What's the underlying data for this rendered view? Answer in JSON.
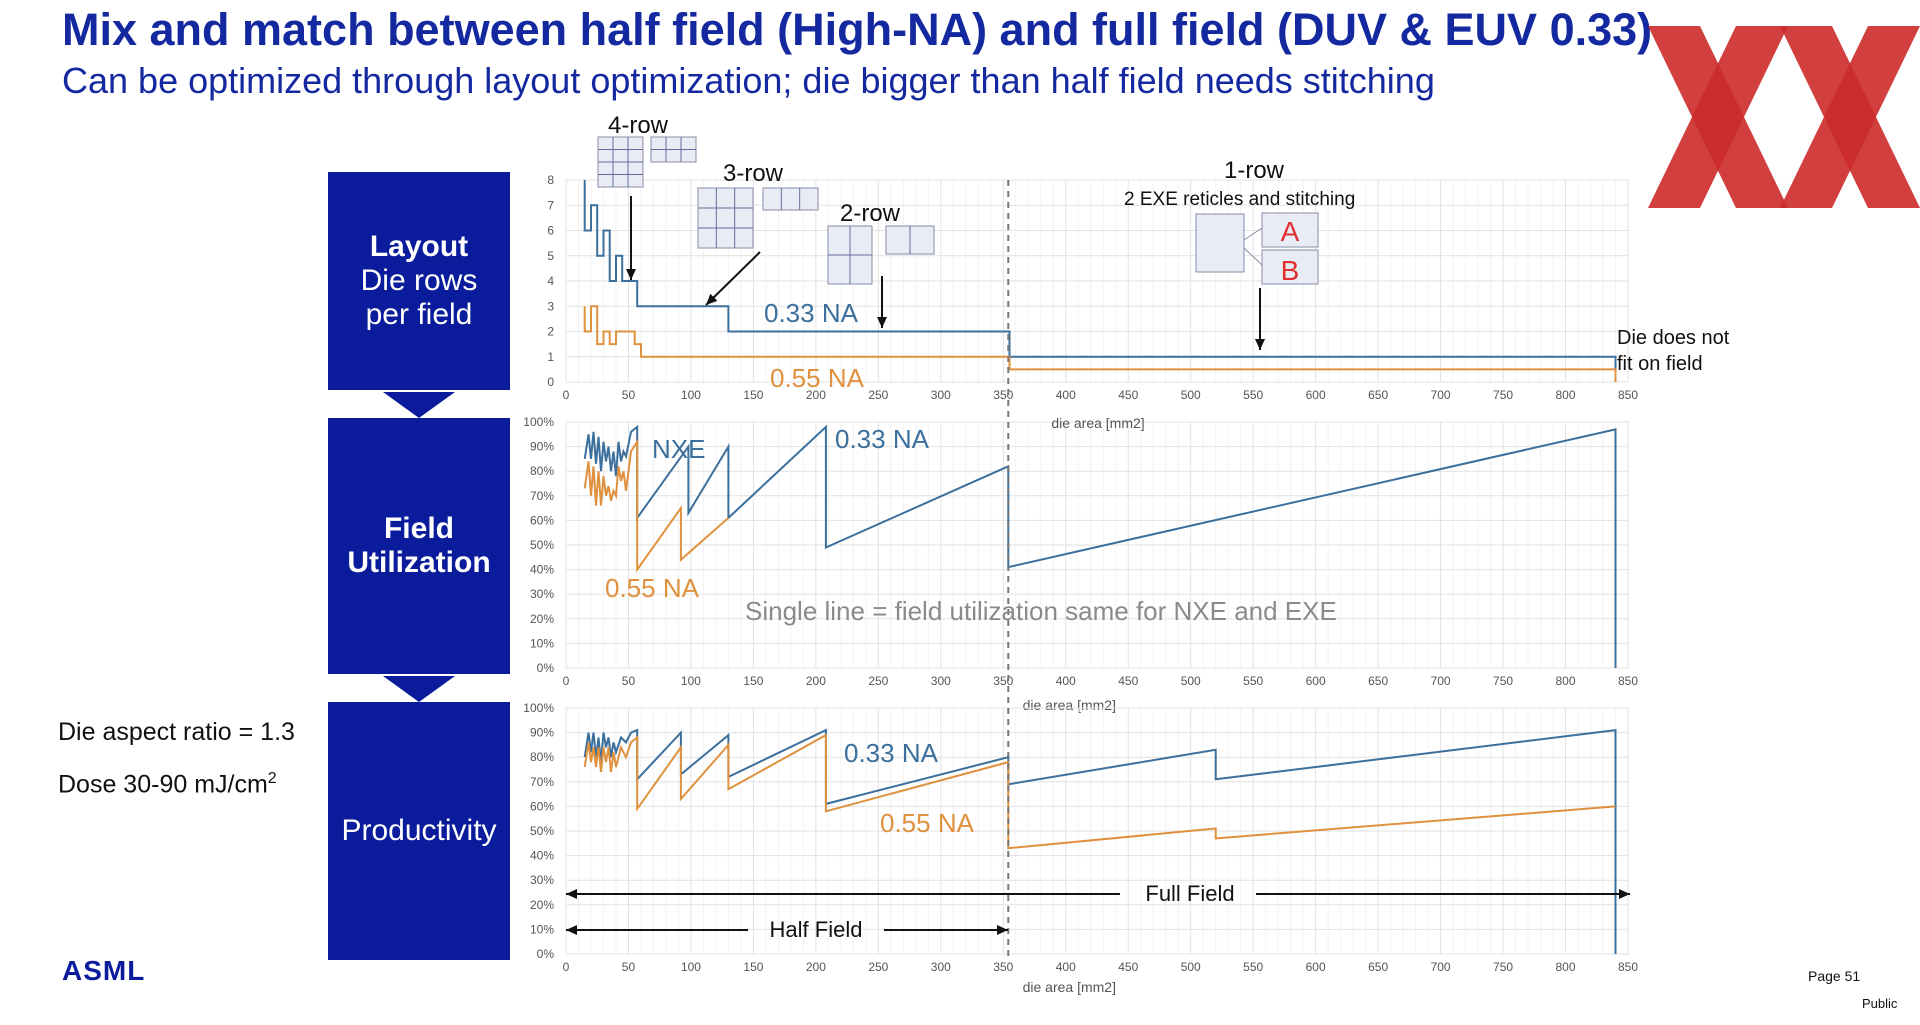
{
  "header": {
    "title": "Mix and match between half field (High-NA) and full field (DUV & EUV 0.33)",
    "subtitle": "Can be optimized through layout optimization; die bigger than half field needs stitching"
  },
  "sidebar": {
    "layout": {
      "line1": "Layout",
      "line2": "Die rows",
      "line3": "per field"
    },
    "utilization": {
      "line1": "Field",
      "line2": "Utilization"
    },
    "productivity": {
      "line1": "Productivity"
    }
  },
  "notes": {
    "aspect": "Die aspect ratio = 1.3",
    "dose": "Dose 30-90 mJ/cm",
    "dose_sup": "2"
  },
  "footer": {
    "logo": "ASML",
    "page": "Page 51",
    "classification": "Public"
  },
  "colors": {
    "blue_series": "#3b6f9c",
    "orange_series": "#e0913e",
    "brand": "#0a1c9b",
    "watermark": "#cc2a2a"
  },
  "annotations": {
    "row4": "4-row",
    "row3": "3-row",
    "row2": "2-row",
    "row1": "1-row",
    "stitch": "2 EXE reticles and stitching",
    "A": "A",
    "B": "B",
    "na033_top": "0.33 NA",
    "na055_top": "0.55 NA",
    "nofit1": "Die does not",
    "nofit2": "fit on field",
    "nxe": "NXE",
    "na033_mid": "0.33 NA",
    "na055_mid": "0.55 NA",
    "single_line": "Single line = field utilization same for NXE and EXE",
    "na033_bot": "0.33 NA",
    "na055_bot": "0.55 NA",
    "full_field": "Full Field",
    "half_field": "Half Field"
  },
  "chart_data": [
    {
      "type": "line",
      "name": "layout",
      "xlabel": "die area [mm2]",
      "ylabel": "",
      "xlim": [
        0,
        850
      ],
      "ylim": [
        0,
        8
      ],
      "x_ticks": [
        "0",
        "50",
        "100",
        "150",
        "200",
        "250",
        "300",
        "350",
        "400",
        "450",
        "500",
        "550",
        "600",
        "650",
        "700",
        "750",
        "800",
        "850"
      ],
      "y_ticks": [
        "0",
        "1",
        "2",
        "3",
        "4",
        "5",
        "6",
        "7",
        "8"
      ],
      "series": [
        {
          "name": "0.33 NA",
          "color": "blue",
          "x": [
            15,
            15,
            20,
            20,
            25,
            25,
            30,
            30,
            35,
            35,
            40,
            40,
            45,
            45,
            57,
            57,
            130,
            130,
            355,
            355,
            840,
            840
          ],
          "y": [
            8,
            6,
            6,
            7,
            7,
            5,
            5,
            6,
            6,
            4,
            4,
            5,
            5,
            4,
            4,
            3,
            3,
            2,
            2,
            1,
            1,
            0
          ]
        },
        {
          "name": "0.55 NA",
          "color": "orange",
          "x": [
            15,
            15,
            20,
            20,
            25,
            25,
            30,
            30,
            35,
            35,
            40,
            40,
            55,
            55,
            60,
            60,
            355,
            355,
            840,
            840
          ],
          "y": [
            3,
            2,
            2,
            3,
            3,
            1.5,
            1.5,
            2,
            2,
            1.5,
            1.5,
            2,
            2,
            1.5,
            1.5,
            1,
            1,
            0.5,
            0.5,
            0
          ]
        }
      ]
    },
    {
      "type": "line",
      "name": "field-utilization",
      "xlabel": "die area [mm2]",
      "ylabel": "",
      "xlim": [
        0,
        850
      ],
      "ylim": [
        0,
        100
      ],
      "x_ticks": [
        "0",
        "50",
        "100",
        "150",
        "200",
        "250",
        "300",
        "350",
        "400",
        "450",
        "500",
        "550",
        "600",
        "650",
        "700",
        "750",
        "800",
        "850"
      ],
      "y_ticks": [
        "0%",
        "10%",
        "20%",
        "30%",
        "40%",
        "50%",
        "60%",
        "70%",
        "80%",
        "90%",
        "100%"
      ],
      "series": [
        {
          "name": "0.33 NA",
          "color": "blue",
          "x": [
            15,
            18,
            20,
            22,
            24,
            26,
            28,
            30,
            32,
            34,
            36,
            38,
            40,
            42,
            44,
            46,
            48,
            52,
            57,
            57,
            98,
            98,
            130,
            130,
            208,
            208,
            354,
            354,
            840,
            840
          ],
          "y": [
            85,
            95,
            85,
            96,
            83,
            94,
            80,
            92,
            84,
            90,
            80,
            88,
            78,
            92,
            84,
            88,
            86,
            96,
            98,
            61,
            90,
            63,
            90,
            61,
            98,
            49,
            82,
            41,
            97,
            0
          ]
        },
        {
          "name": "0.55 NA",
          "color": "orange",
          "x": [
            15,
            18,
            20,
            22,
            24,
            26,
            28,
            30,
            32,
            34,
            36,
            38,
            40,
            42,
            44,
            46,
            48,
            52,
            57,
            57,
            92,
            92,
            130,
            130
          ],
          "y": [
            73,
            84,
            70,
            82,
            66,
            80,
            66,
            78,
            70,
            74,
            68,
            72,
            70,
            82,
            76,
            80,
            72,
            88,
            92,
            40,
            65,
            44,
            61,
            61
          ]
        }
      ]
    },
    {
      "type": "line",
      "name": "productivity",
      "xlabel": "die area [mm2]",
      "ylabel": "",
      "xlim": [
        0,
        850
      ],
      "ylim": [
        0,
        100
      ],
      "x_ticks": [
        "0",
        "50",
        "100",
        "150",
        "200",
        "250",
        "300",
        "350",
        "400",
        "450",
        "500",
        "550",
        "600",
        "650",
        "700",
        "750",
        "800",
        "850"
      ],
      "y_ticks": [
        "0%",
        "10%",
        "20%",
        "30%",
        "40%",
        "50%",
        "60%",
        "70%",
        "80%",
        "90%",
        "100%"
      ],
      "series": [
        {
          "name": "0.33 NA",
          "color": "blue",
          "x": [
            15,
            18,
            20,
            22,
            24,
            26,
            28,
            30,
            32,
            34,
            36,
            38,
            40,
            44,
            48,
            52,
            57,
            57,
            92,
            92,
            130,
            130,
            208,
            208,
            354,
            354,
            520,
            520,
            840,
            840
          ],
          "y": [
            80,
            90,
            82,
            90,
            80,
            88,
            78,
            90,
            84,
            88,
            80,
            86,
            82,
            88,
            86,
            90,
            91,
            71,
            90,
            73,
            89,
            72,
            91,
            61,
            80,
            69,
            83,
            71,
            91,
            0
          ]
        },
        {
          "name": "0.55 NA",
          "color": "orange",
          "x": [
            15,
            18,
            20,
            22,
            24,
            26,
            28,
            30,
            32,
            34,
            36,
            38,
            40,
            44,
            48,
            52,
            57,
            57,
            92,
            92,
            130,
            130,
            208,
            208,
            354,
            354,
            520,
            520,
            840
          ],
          "y": [
            76,
            86,
            78,
            84,
            76,
            84,
            74,
            84,
            78,
            84,
            74,
            82,
            76,
            84,
            80,
            86,
            88,
            59,
            84,
            63,
            85,
            67,
            89,
            58,
            78,
            43,
            51,
            47,
            60
          ]
        }
      ]
    }
  ]
}
